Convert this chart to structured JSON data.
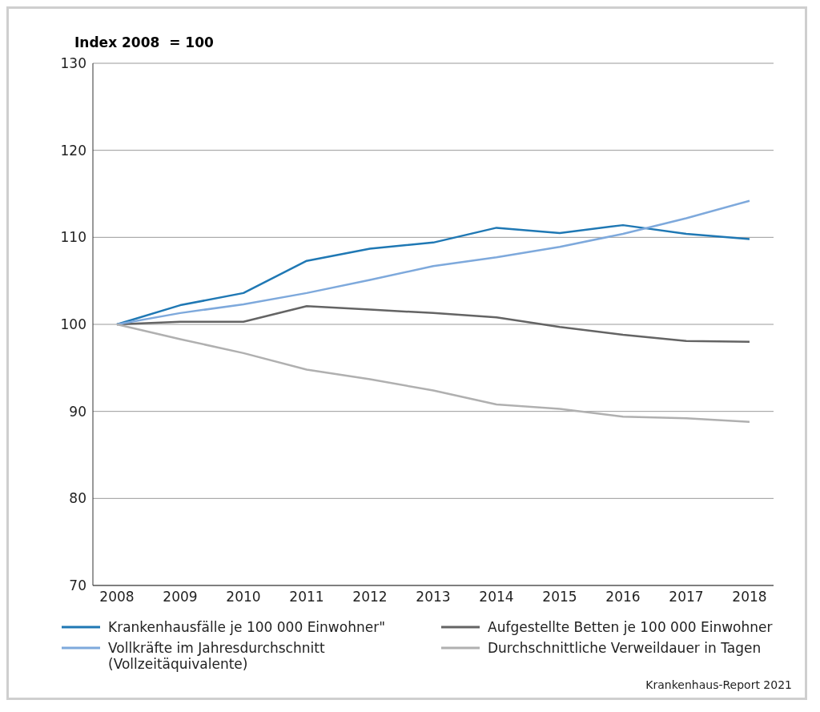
{
  "chart_data": {
    "type": "line",
    "ylabel": "Index 2008  = 100",
    "categories": [
      "2008",
      "2009",
      "2010",
      "2011",
      "2012",
      "2013",
      "2014",
      "2015",
      "2016",
      "2017",
      "2018"
    ],
    "series": [
      {
        "name": "Krankenhausfälle je 100 000 Einwohner\"",
        "color": "#1f78b4",
        "values": [
          100,
          102.2,
          103.6,
          107.3,
          108.7,
          109.4,
          111.1,
          110.5,
          111.4,
          110.4,
          109.8
        ]
      },
      {
        "name": "Aufgestellte Betten je 100 000 Einwohner",
        "color": "#646464",
        "values": [
          100,
          100.3,
          100.3,
          102.1,
          101.7,
          101.3,
          100.8,
          99.7,
          98.8,
          98.1,
          98.0
        ]
      },
      {
        "name": "Vollkräfte im Jahresdurchschnitt (Vollzeitäquivalente)",
        "color": "#7ea9dc",
        "values": [
          100,
          101.3,
          102.3,
          103.6,
          105.1,
          106.7,
          107.7,
          108.9,
          110.4,
          112.2,
          114.2
        ]
      },
      {
        "name": "Durchschnittliche Verweildauer in Tagen",
        "color": "#b0b0b0",
        "values": [
          100,
          98.3,
          96.7,
          94.8,
          93.7,
          92.4,
          90.8,
          90.3,
          89.4,
          89.2,
          88.8
        ]
      }
    ],
    "ylim": [
      70,
      130
    ],
    "yticks": [
      70,
      80,
      90,
      100,
      110,
      120,
      130
    ],
    "grid": "y",
    "legend": "bottom",
    "marker": "none",
    "line_style": "solid",
    "annotations": [
      "Krankenhaus-Report 2021"
    ]
  }
}
